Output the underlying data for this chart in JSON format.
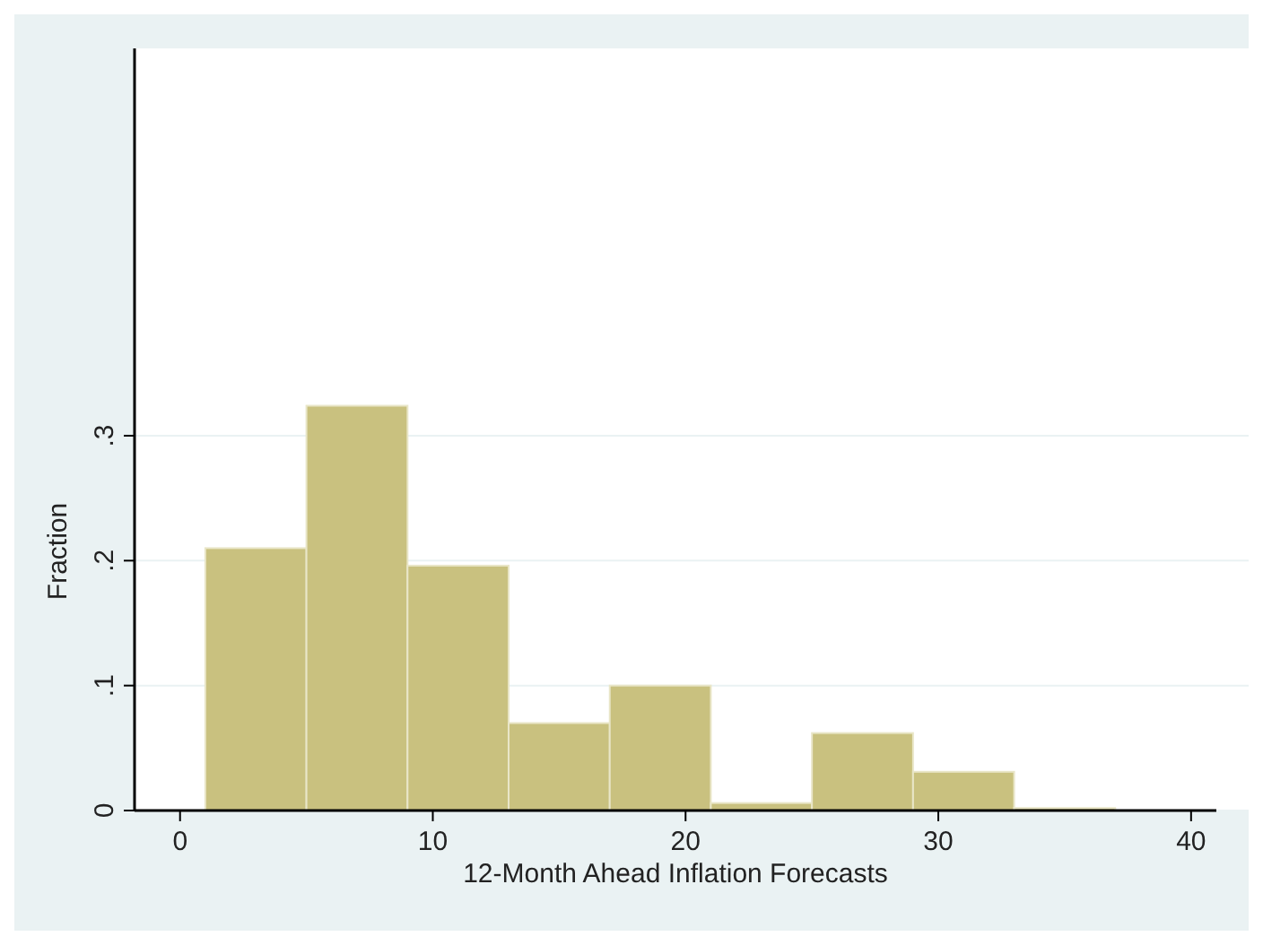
{
  "chart_data": {
    "type": "histogram",
    "xlabel": "12-Month Ahead Inflation Forecasts",
    "ylabel": "Fraction",
    "bins": [
      1,
      5,
      9,
      13,
      17,
      21,
      25,
      29,
      33,
      37
    ],
    "values": [
      0.21,
      0.324,
      0.196,
      0.07,
      0.1,
      0.006,
      0.062,
      0.031,
      0.002
    ],
    "color": "#c9c17f",
    "xlim": [
      -1.8,
      41
    ],
    "xticks": [
      0,
      10,
      20,
      30,
      40
    ],
    "ylim": [
      0,
      0.61
    ],
    "yticks": [
      {
        "value": 0,
        "label": "0"
      },
      {
        "value": 0.1,
        "label": ".1"
      },
      {
        "value": 0.2,
        "label": ".2"
      },
      {
        "value": 0.3,
        "label": ".3"
      }
    ],
    "grid": "y"
  }
}
